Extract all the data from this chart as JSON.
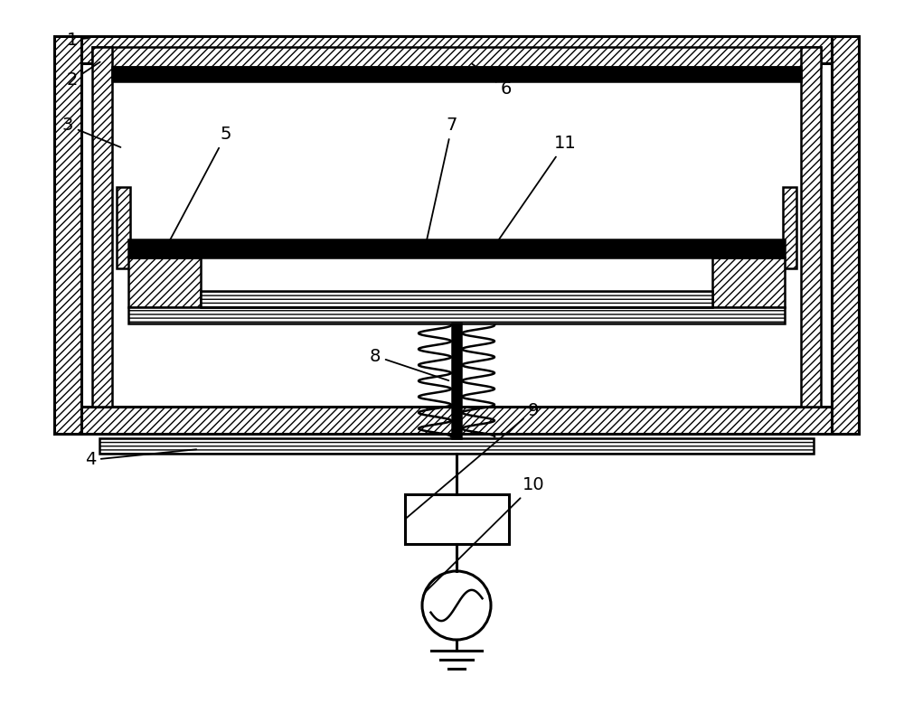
{
  "bg_color": "#ffffff",
  "lc": "#000000",
  "fig_w": 10.0,
  "fig_h": 7.99,
  "dpi": 100
}
